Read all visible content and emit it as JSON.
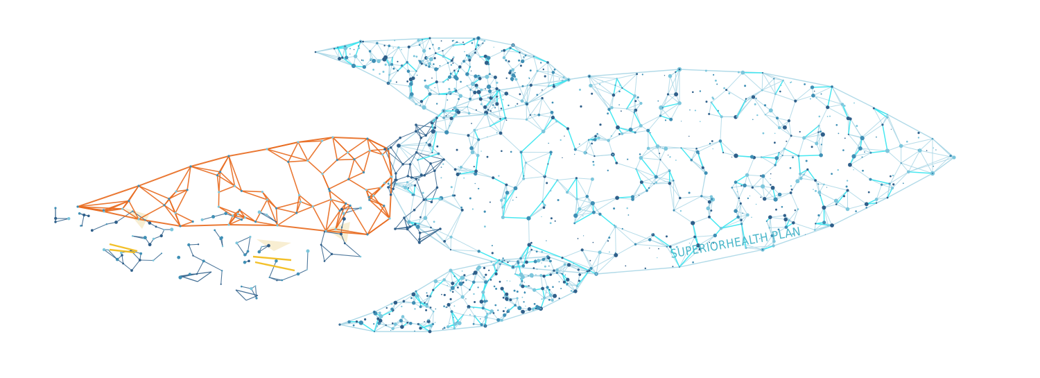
{
  "brand": {
    "text": "SUPERIORHEALTH PLAN"
  },
  "illustration": {
    "subject": "rocket-icon",
    "colors": {
      "body_line": "#a9d6e5",
      "body_line_bright": "#33e6f0",
      "node_dark": "#2f5f8a",
      "node_mid": "#3f8fb5",
      "node_light": "#7cc6dc",
      "flame_line": "#e8691d",
      "debris_line": "#2f5f8a",
      "accent_yellow": "#f2bd1d",
      "accent_cream": "#f7eccd"
    }
  }
}
